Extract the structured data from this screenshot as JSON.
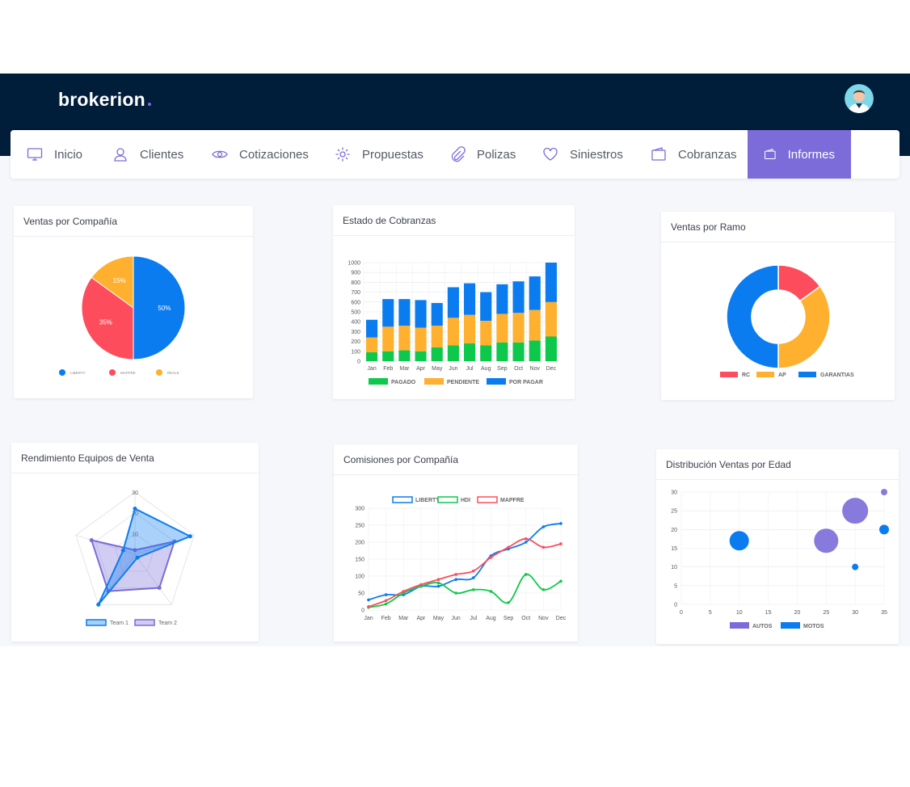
{
  "app": {
    "logo": "brokerion"
  },
  "nav": {
    "items": [
      {
        "label": "Inicio",
        "icon": "monitor-icon"
      },
      {
        "label": "Clientes",
        "icon": "user-icon"
      },
      {
        "label": "Cotizaciones",
        "icon": "eye-icon"
      },
      {
        "label": "Propuestas",
        "icon": "gear-icon"
      },
      {
        "label": "Polizas",
        "icon": "paperclip-icon"
      },
      {
        "label": "Siniestros",
        "icon": "heart-icon"
      },
      {
        "label": "Cobranzas",
        "icon": "wallet-icon"
      },
      {
        "label": "Informes",
        "icon": "wallet-icon",
        "active": true
      }
    ]
  },
  "colors": {
    "header": "#001d3a",
    "accent": "#7b6cd9",
    "blue": "#0a7cf0",
    "red": "#fd4d5c",
    "orange": "#ffb02e",
    "green": "#0dc94b",
    "purple": "#7b6cd9"
  },
  "cards": {
    "pie": {
      "title": "Ventas por Compañía"
    },
    "stacked": {
      "title": "Estado de Cobranzas"
    },
    "donut": {
      "title": "Ventas por Ramo"
    },
    "radar": {
      "title": "Rendimiento Equipos de Venta"
    },
    "line": {
      "title": "Comisiones por Compañía"
    },
    "bubble": {
      "title": "Distribución Ventas por Edad"
    }
  },
  "chart_data": [
    {
      "type": "pie",
      "title": "Ventas por Compañía",
      "slices": [
        {
          "label": "LIBERTY",
          "value": 50,
          "text": "50%",
          "color": "#0a7cf0"
        },
        {
          "label": "MAPFRE",
          "value": 35,
          "text": "35%",
          "color": "#fd4d5c"
        },
        {
          "label": "REALE",
          "value": 15,
          "text": "15%",
          "color": "#ffb02e"
        }
      ]
    },
    {
      "type": "bar",
      "stacked": true,
      "title": "Estado de Cobranzas",
      "categories": [
        "Jan",
        "Feb",
        "Mar",
        "Apr",
        "May",
        "Jun",
        "Jul",
        "Aug",
        "Sep",
        "Oct",
        "Nov",
        "Dec"
      ],
      "ylim": [
        0,
        1000
      ],
      "yticks": [
        0,
        100,
        200,
        300,
        400,
        500,
        600,
        700,
        800,
        900,
        1000
      ],
      "series": [
        {
          "name": "PAGADO",
          "color": "#0dc94b",
          "values": [
            90,
            100,
            110,
            100,
            140,
            160,
            180,
            160,
            190,
            190,
            210,
            250
          ]
        },
        {
          "name": "PENDIENTE",
          "color": "#ffb02e",
          "values": [
            150,
            250,
            250,
            240,
            220,
            280,
            290,
            250,
            290,
            300,
            310,
            350
          ]
        },
        {
          "name": "POR PAGAR",
          "color": "#0a7cf0",
          "values": [
            180,
            280,
            270,
            280,
            230,
            310,
            320,
            290,
            300,
            320,
            340,
            400
          ]
        }
      ]
    },
    {
      "type": "pie",
      "donut": true,
      "title": "Ventas por Ramo",
      "slices": [
        {
          "label": "RC",
          "value": 15,
          "color": "#fd4d5c"
        },
        {
          "label": "AP",
          "value": 35,
          "color": "#ffb02e"
        },
        {
          "label": "GARANTIAS",
          "value": 50,
          "color": "#0a7cf0"
        }
      ]
    },
    {
      "type": "radar",
      "title": "Rendimiento Equipos de Venta",
      "max": 30,
      "ticklabels": [
        "30",
        "20",
        "10"
      ],
      "series": [
        {
          "name": "Team 1",
          "color": "#0a7cf0",
          "values": [
            22,
            28,
            2,
            30,
            6
          ]
        },
        {
          "name": "Team 2",
          "color": "#7b6cd9",
          "values": [
            2,
            20,
            20,
            22,
            22
          ]
        }
      ]
    },
    {
      "type": "line",
      "title": "Comisiones por Compañía",
      "categories": [
        "Jan",
        "Feb",
        "Mar",
        "Apr",
        "May",
        "Jun",
        "Jul",
        "Aug",
        "Sep",
        "Oct",
        "Nov",
        "Dec"
      ],
      "ylim": [
        0,
        300
      ],
      "yticks": [
        0,
        50,
        100,
        150,
        200,
        250,
        300
      ],
      "series": [
        {
          "name": "LIBERTY",
          "color": "#0a7cf0",
          "values": [
            30,
            45,
            45,
            70,
            70,
            90,
            95,
            160,
            180,
            200,
            245,
            255
          ]
        },
        {
          "name": "HDI",
          "color": "#0dc94b",
          "values": [
            8,
            18,
            50,
            70,
            80,
            50,
            60,
            55,
            22,
            105,
            60,
            85
          ]
        },
        {
          "name": "MAPFRE",
          "color": "#fd4d5c",
          "values": [
            10,
            28,
            55,
            75,
            90,
            105,
            115,
            155,
            185,
            210,
            185,
            195
          ]
        }
      ]
    },
    {
      "type": "bubble",
      "title": "Distribución Ventas por Edad",
      "xlim": [
        0,
        35
      ],
      "ylim": [
        0,
        30
      ],
      "xticks": [
        0,
        5,
        10,
        15,
        20,
        25,
        30,
        35
      ],
      "yticks": [
        0,
        5,
        10,
        15,
        20,
        25,
        30
      ],
      "series": [
        {
          "name": "AUTOS",
          "color": "#7b6cd9",
          "points": [
            {
              "x": 25,
              "y": 17,
              "r": 15
            },
            {
              "x": 30,
              "y": 25,
              "r": 16
            },
            {
              "x": 35,
              "y": 30,
              "r": 4
            }
          ]
        },
        {
          "name": "MOTOS",
          "color": "#0a7cf0",
          "points": [
            {
              "x": 10,
              "y": 17,
              "r": 12
            },
            {
              "x": 35,
              "y": 20,
              "r": 6
            },
            {
              "x": 30,
              "y": 10,
              "r": 4
            }
          ]
        }
      ]
    }
  ]
}
